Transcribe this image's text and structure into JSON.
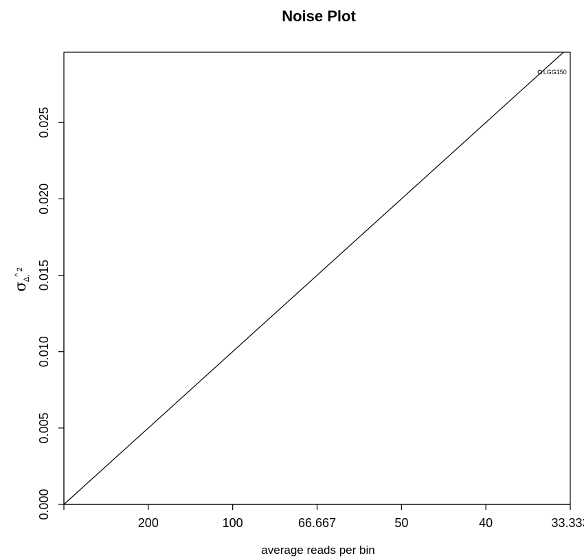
{
  "chart_data": {
    "type": "scatter",
    "title": "Noise Plot",
    "xlabel": "average reads per bin",
    "ylabel": {
      "symbol": "σ",
      "hat": "^",
      "superscript": "2",
      "subscript": "Δ,"
    },
    "x_ticks": [
      {
        "value": 0.005,
        "label": "200"
      },
      {
        "value": 0.01,
        "label": "100"
      },
      {
        "value": 0.015,
        "label": "66.667"
      },
      {
        "value": 0.02,
        "label": "50"
      },
      {
        "value": 0.025,
        "label": "40"
      },
      {
        "value": 0.03,
        "label": "33.333"
      }
    ],
    "y_ticks": [
      {
        "value": 0.0,
        "label": "0.000"
      },
      {
        "value": 0.005,
        "label": "0.005"
      },
      {
        "value": 0.01,
        "label": "0.010"
      },
      {
        "value": 0.015,
        "label": "0.015"
      },
      {
        "value": 0.02,
        "label": "0.020"
      },
      {
        "value": 0.025,
        "label": "0.025"
      }
    ],
    "xlim": [
      0.0,
      0.03
    ],
    "ylim": [
      0.0,
      0.0296
    ],
    "reference_line": {
      "slope": 1,
      "intercept": 0
    },
    "points": [
      {
        "x": 0.0282,
        "y": 0.0283,
        "label": "LGG150"
      }
    ],
    "grid": false,
    "legend": "none"
  }
}
